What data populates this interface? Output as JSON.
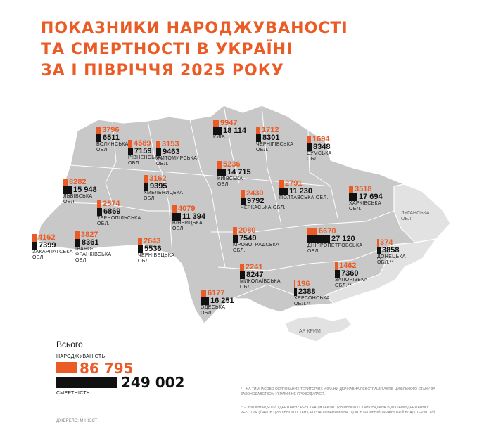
{
  "title": [
    "ПОКАЗНИКИ НАРОДЖУВАНОСТІ",
    "ТА СМЕРТНОСТІ В УКРАЇНІ",
    "ЗА І ПІВРІЧЧЯ 2025 РОКУ"
  ],
  "colors": {
    "births": "#ea5b25",
    "deaths": "#111111",
    "map": "#c8c8c8",
    "occupied": "#e2e2e2"
  },
  "regions": [
    {
      "name": "ВОЛИНСЬКА ОБЛ.",
      "births": "3796",
      "deaths": "6511"
    },
    {
      "name": "РІВНЕНСЬКА ОБЛ.",
      "births": "4589",
      "deaths": "7159"
    },
    {
      "name": "ЖИТОМИРСЬКА ОБЛ.",
      "births": "3153",
      "deaths": "9463"
    },
    {
      "name": "КИЇВ",
      "births": "9947",
      "deaths": "18 114"
    },
    {
      "name": "ЧЕРНІГІВСЬКА ОБЛ.",
      "births": "1712",
      "deaths": "8301"
    },
    {
      "name": "СУМСЬКА ОБЛ.",
      "births": "1694",
      "deaths": "8348"
    },
    {
      "name": "ЛЬВІВСЬКА ОБЛ.",
      "births": "8282",
      "deaths": "15 948"
    },
    {
      "name": "ХМЕЛЬНИЦЬКА ОБЛ.",
      "births": "3162",
      "deaths": "9395"
    },
    {
      "name": "КИЇВСЬКА ОБЛ.",
      "births": "5236",
      "deaths": "14 715"
    },
    {
      "name": "ПОЛТАВСЬКА ОБЛ.",
      "births": "2791",
      "deaths": "11 230"
    },
    {
      "name": "ХАРКІВСЬКА ОБЛ.",
      "births": "3518",
      "deaths": "17 694"
    },
    {
      "name": "ТЕРНОПІЛЬСЬКА ОБЛ.",
      "births": "2574",
      "deaths": "6869"
    },
    {
      "name": "ВІННИЦЬКА ОБЛ.",
      "births": "4079",
      "deaths": "11 394"
    },
    {
      "name": "ЧЕРКАСЬКА ОБЛ.",
      "births": "2430",
      "deaths": "9792"
    },
    {
      "name": "ЗАКАРПАТСЬКА ОБЛ.",
      "births": "4162",
      "deaths": "7399"
    },
    {
      "name": "ІВАНО-ФРАНКІВСЬКА ОБЛ.",
      "births": "3827",
      "deaths": "8361"
    },
    {
      "name": "ЧЕРНІВЕЦЬКА ОБЛ.",
      "births": "2643",
      "deaths": "5536"
    },
    {
      "name": "КІРОВОГРАДСЬКА ОБЛ.",
      "births": "2080",
      "deaths": "7549"
    },
    {
      "name": "ДНІПРОПЕТРОВСЬКА ОБЛ.",
      "births": "6670",
      "deaths": "27 120"
    },
    {
      "name": "ДОНЕЦЬКА ОБЛ.**",
      "births": "374",
      "deaths": "3858"
    },
    {
      "name": "МИКОЛАЇВСЬКА ОБЛ.",
      "births": "2241",
      "deaths": "8247"
    },
    {
      "name": "ЗАПОРІЗЬКА ОБЛ.**",
      "births": "1462",
      "deaths": "7360"
    },
    {
      "name": "ХЕРСОНСЬКА ОБЛ.**",
      "births": "196",
      "deaths": "2388"
    },
    {
      "name": "ОДЕСЬКА ОБЛ.",
      "births": "6177",
      "deaths": "16 251"
    }
  ],
  "luhansk": "ЛУГАНСЬКА ОБЛ.",
  "crimea": "АР КРИМ",
  "total": {
    "label": "Всього",
    "births_label": "НАРОДЖУВАНІСТЬ",
    "births": "86 795",
    "deaths_label": "СМЕРТНІСТЬ",
    "deaths": "249 002"
  },
  "notes": [
    "* – НА ТИМЧАСОВО ОКУПОВАНИХ ТЕРИТОРІЯХ УКРАЇНИ ДЕРЖАВНА РЕЄСТРАЦІЯ АКТІВ ЦИВІЛЬНОГО СТАНУ ЗА ЗАКОНОДАВСТВОМ УКРАЇНИ НЕ ПРОВОДИЛАСЯ.",
    "** – ІНФОРМАЦІЯ ПРО ДЕРЖАВНУ РЕЄСТРАЦІЮ АКТІВ ЦИВІЛЬНОГО СТАНУ НАДАНА ВІДДІЛАМИ ДЕРЖАВНОЇ РЕЄСТРАЦІЇ АКТІВ ЦИВІЛЬНОГО СТАНУ, РОЗТАШОВАНИМИ НА ПІДКОНТРОЛЬНІЙ УКРАЇНСЬКІЙ ВЛАДІ ТЕРИТОРІЇ."
  ],
  "source": "ДЖЕРЕЛО: МІНЮСТ"
}
